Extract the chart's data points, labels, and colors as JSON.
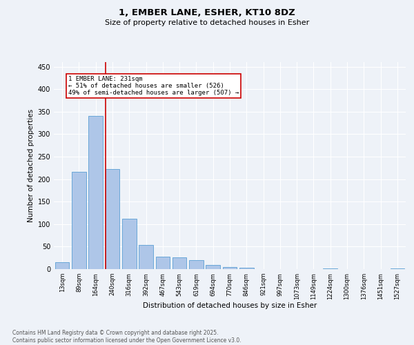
{
  "title": "1, EMBER LANE, ESHER, KT10 8DZ",
  "subtitle": "Size of property relative to detached houses in Esher",
  "xlabel": "Distribution of detached houses by size in Esher",
  "ylabel": "Number of detached properties",
  "bar_labels": [
    "13sqm",
    "89sqm",
    "164sqm",
    "240sqm",
    "316sqm",
    "392sqm",
    "467sqm",
    "543sqm",
    "619sqm",
    "694sqm",
    "770sqm",
    "846sqm",
    "921sqm",
    "997sqm",
    "1073sqm",
    "1149sqm",
    "1224sqm",
    "1300sqm",
    "1376sqm",
    "1451sqm",
    "1527sqm"
  ],
  "bar_values": [
    15,
    216,
    340,
    223,
    112,
    54,
    27,
    26,
    20,
    9,
    5,
    3,
    0,
    0,
    0,
    0,
    1,
    0,
    0,
    0,
    2
  ],
  "bar_color": "#aec6e8",
  "bar_edge_color": "#5a9fd4",
  "vline_x_idx": 3,
  "vline_color": "#cc0000",
  "annotation_text": "1 EMBER LANE: 231sqm\n← 51% of detached houses are smaller (526)\n49% of semi-detached houses are larger (507) →",
  "annotation_box_color": "#ffffff",
  "annotation_box_edge": "#cc0000",
  "ylim": [
    0,
    460
  ],
  "yticks": [
    0,
    50,
    100,
    150,
    200,
    250,
    300,
    350,
    400,
    450
  ],
  "bg_color": "#eef2f8",
  "grid_color": "#ffffff",
  "footer_line1": "Contains HM Land Registry data © Crown copyright and database right 2025.",
  "footer_line2": "Contains public sector information licensed under the Open Government Licence v3.0."
}
